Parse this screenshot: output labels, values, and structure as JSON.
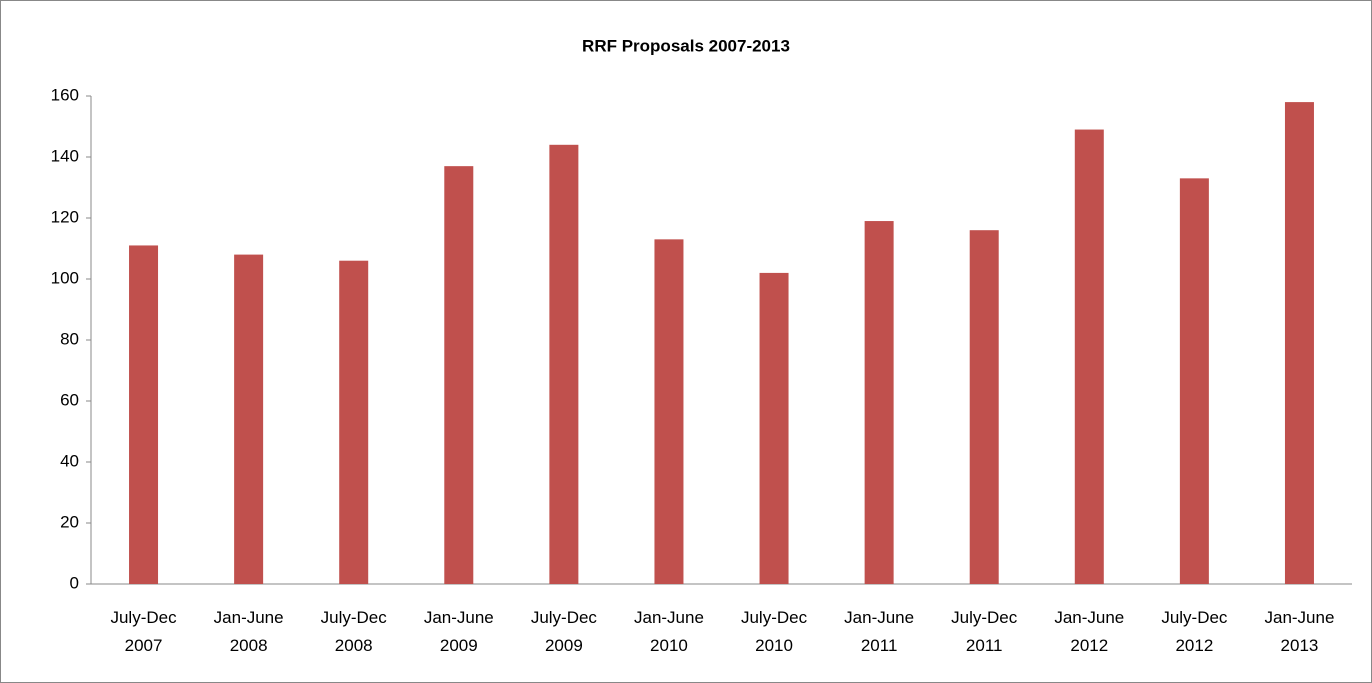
{
  "chart_data": {
    "type": "bar",
    "title": "RRF Proposals 2007-2013",
    "categories": [
      "July-Dec 2007",
      "Jan-June 2008",
      "July-Dec 2008",
      "Jan-June 2009",
      "July-Dec 2009",
      "Jan-June 2010",
      "July-Dec 2010",
      "Jan-June 2011",
      "July-Dec 2011",
      "Jan-June 2012",
      "July-Dec 2012",
      "Jan-June 2013"
    ],
    "values": [
      111,
      108,
      106,
      137,
      144,
      113,
      102,
      119,
      116,
      149,
      133,
      158
    ],
    "color": "#c0504d",
    "ylim": [
      0,
      160
    ],
    "yticks": [
      0,
      20,
      40,
      60,
      80,
      100,
      120,
      140,
      160
    ],
    "grid": false
  }
}
